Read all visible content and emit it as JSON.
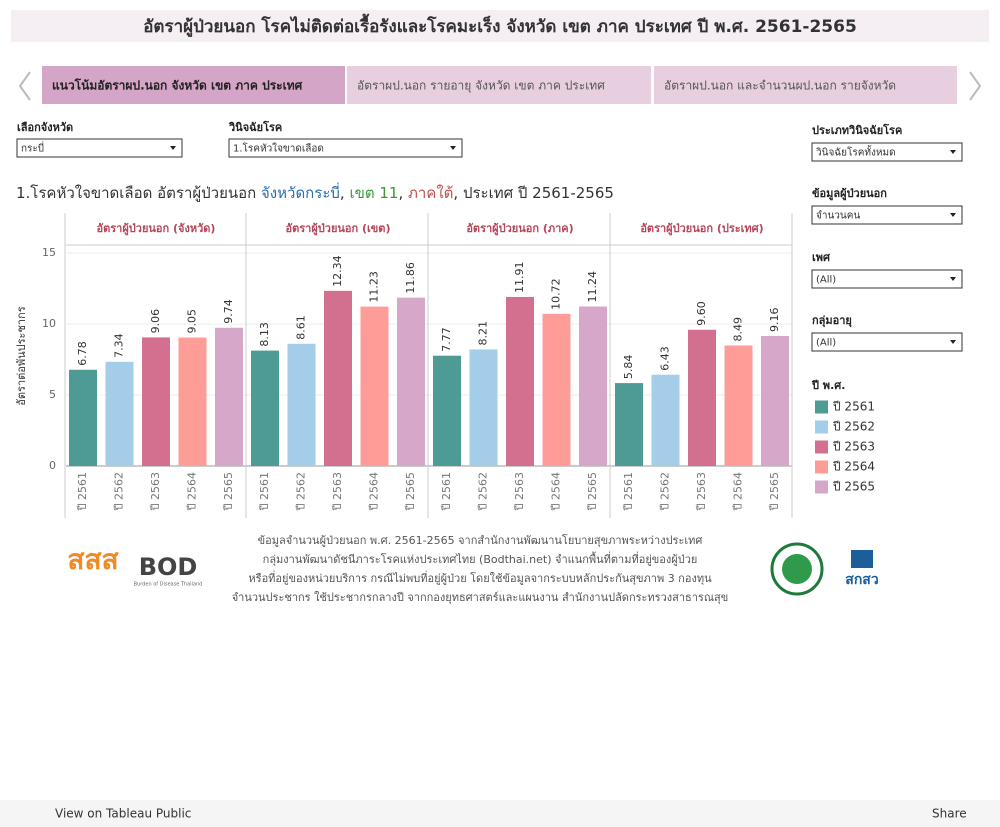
{
  "header": {
    "title": "อัตราผู้ป่วยนอก โรคไม่ติดต่อเรื้อรังและโรคมะเร็ง จังหวัด เขต ภาค ประเทศ ปี พ.ศ. 2561-2565"
  },
  "tabs": [
    "แนวโน้มอัตราผป.นอก จังหวัด เขต ภาค ประเทศ",
    "อัตราผป.นอก รายอายุ จังหวัด เขต ภาค ประเทศ",
    "อัตราผป.นอก และจำนวนผป.นอก รายจังหวัด"
  ],
  "filters": [
    {
      "label": "เลือกจังหวัด",
      "value": "กระบี่"
    },
    {
      "label": "วินิจฉัยโรค",
      "value": "1.โรคหัวใจขาดเลือด"
    },
    {
      "label": "ประเภทวินิจฉัยโรค",
      "value": "วินิจฉัยโรคทั้งหมด"
    },
    {
      "label": "ข้อมูลผู้ป่วยนอก",
      "value": "จำนวนคน"
    },
    {
      "label": "เพศ",
      "value": "(All)"
    },
    {
      "label": "กลุ่มอายุ",
      "value": "(All)"
    }
  ],
  "chart_data": {
    "type": "bar",
    "title_parts": [
      "1.โรคหัวใจขาดเลือด อัตราผู้ป่วยนอก ",
      "จังหวัดกระบี่",
      ", ",
      "เขต 11",
      ", ",
      "ภาคใต้",
      ", ประเทศ ปี 2561-2565"
    ],
    "panels": [
      "อัตราผู้ป่วยนอก (จังหวัด)",
      "อัตราผู้ป่วยนอก (เขต)",
      "อัตราผู้ป่วยนอก (ภาค)",
      "อัตราผู้ป่วยนอก (ประเทศ)"
    ],
    "y_label": "อัตราต่อพันประชากร",
    "ylim": [
      0,
      15.5
    ],
    "yticks": [
      0,
      5,
      10,
      15
    ],
    "grid": true,
    "legend_title": "ปี พ.ศ.",
    "series": [
      {
        "name": "ปี 2561",
        "color": "#4e9a94",
        "values": [
          6.78,
          8.13,
          7.77,
          5.84
        ]
      },
      {
        "name": "ปี 2562",
        "color": "#a3cde8",
        "values": [
          7.34,
          8.61,
          8.21,
          6.43
        ]
      },
      {
        "name": "ปี 2563",
        "color": "#d4708f",
        "values": [
          9.06,
          12.34,
          11.91,
          9.6
        ],
        "value_labels": [
          "9.06",
          "12.34",
          "11.91",
          "9.60"
        ]
      },
      {
        "name": "ปี 2564",
        "color": "#fe9c98",
        "values": [
          9.05,
          11.23,
          10.72,
          8.49
        ]
      },
      {
        "name": "ปี 2565",
        "color": "#d6a7c9",
        "values": [
          9.74,
          11.86,
          11.24,
          9.16
        ]
      }
    ]
  },
  "footer": {
    "lines": [
      "ข้อมูลจำนวนผู้ป่วยนอก พ.ศ. 2561-2565 จากสำนักงานพัฒนานโยบายสุขภาพระหว่างประเทศ",
      "กลุ่มงานพัฒนาดัชนีภาระโรคแห่งประเทศไทย (Bodthai.net) จำแนกพื้นที่ตามที่อยู่ของผู้ป่วย",
      "หรือที่อยู่ของหน่วยบริการ กรณีไม่พบที่อยู่ผู้ป่วย โดยใช้ข้อมูลจากระบบหลักประกันสุขภาพ 3 กองทุน",
      "จำนวนประชากร ใช้ประชากรกลางปี จากกองยุทธศาสตร์และแผนงาน สำนักงานปลัดกระทรวงสาธารณสุข"
    ],
    "logos": [
      "สสส",
      "BOD",
      "Burden of Disease Thailand",
      "สกสว"
    ]
  },
  "toolbar": {
    "view": "View on Tableau Public",
    "share": "Share"
  }
}
